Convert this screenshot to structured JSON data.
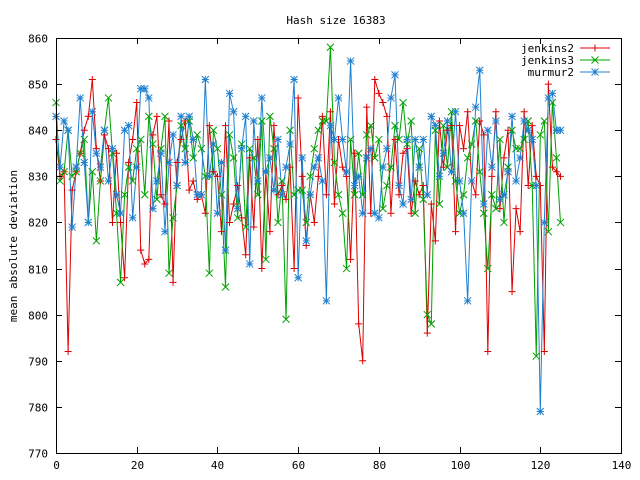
{
  "chart_data": {
    "type": "line",
    "title": "Hash size 16383",
    "xlabel": "",
    "ylabel": "mean absolute deviation",
    "xlim": [
      0,
      140
    ],
    "ylim": [
      770,
      860
    ],
    "x_ticks": [
      0,
      20,
      40,
      60,
      80,
      100,
      120,
      140
    ],
    "y_ticks": [
      770,
      780,
      790,
      800,
      810,
      820,
      830,
      840,
      850,
      860
    ],
    "grid": false,
    "legend_position": "top-right",
    "series": [
      {
        "name": "jenkins2",
        "color": "#dd0000",
        "marker": "plus",
        "values": [
          838,
          830,
          831,
          792,
          827,
          831,
          835,
          840,
          843,
          851,
          836,
          829,
          839,
          836,
          820,
          835,
          820,
          808,
          833,
          838,
          846,
          814,
          811,
          812,
          839,
          843,
          826,
          824,
          842,
          807,
          833,
          838,
          842,
          827,
          829,
          825,
          826,
          822,
          841,
          831,
          830,
          818,
          841,
          820,
          824,
          828,
          821,
          813,
          834,
          819,
          838,
          810,
          831,
          818,
          841,
          826,
          828,
          825,
          832,
          810,
          847,
          830,
          815,
          826,
          820,
          830,
          843,
          826,
          844,
          824,
          838,
          832,
          830,
          812,
          835,
          798,
          790,
          845,
          822,
          851,
          848,
          846,
          843,
          822,
          838,
          826,
          835,
          836,
          822,
          829,
          826,
          828,
          796,
          824,
          816,
          842,
          832,
          840,
          841,
          818,
          841,
          836,
          844,
          829,
          826,
          842,
          839,
          792,
          830,
          844,
          823,
          834,
          840,
          805,
          823,
          818,
          844,
          828,
          841,
          830,
          828,
          792,
          850,
          832,
          831,
          830
        ]
      },
      {
        "name": "jenkins3",
        "color": "#00a000",
        "marker": "x",
        "values": [
          846,
          829,
          831,
          840,
          830,
          831,
          835,
          838,
          820,
          831,
          816,
          829,
          840,
          847,
          835,
          822,
          807,
          826,
          832,
          829,
          836,
          838,
          826,
          843,
          837,
          825,
          836,
          843,
          809,
          821,
          828,
          841,
          836,
          842,
          834,
          839,
          836,
          830,
          809,
          840,
          836,
          826,
          806,
          839,
          834,
          821,
          837,
          819,
          836,
          834,
          826,
          842,
          812,
          843,
          836,
          820,
          829,
          799,
          840,
          826,
          827,
          827,
          820,
          830,
          836,
          840,
          842,
          842,
          858,
          833,
          826,
          822,
          810,
          838,
          826,
          835,
          826,
          839,
          841,
          834,
          838,
          823,
          828,
          832,
          841,
          838,
          846,
          837,
          842,
          822,
          836,
          825,
          800,
          798,
          840,
          824,
          841,
          832,
          844,
          829,
          822,
          826,
          834,
          837,
          842,
          831,
          822,
          810,
          826,
          823,
          838,
          820,
          832,
          840,
          836,
          836,
          838,
          842,
          828,
          791,
          839,
          842,
          818,
          846,
          834,
          820
        ]
      },
      {
        "name": "murmur2",
        "color": "#2080d0",
        "marker": "star",
        "values": [
          843,
          832,
          842,
          840,
          819,
          832,
          847,
          833,
          820,
          844,
          835,
          832,
          840,
          829,
          836,
          826,
          822,
          840,
          841,
          821,
          832,
          849,
          849,
          847,
          823,
          829,
          835,
          818,
          833,
          839,
          828,
          843,
          833,
          843,
          838,
          826,
          826,
          851,
          830,
          837,
          822,
          833,
          814,
          848,
          844,
          823,
          836,
          843,
          811,
          842,
          829,
          847,
          831,
          834,
          827,
          838,
          826,
          832,
          837,
          851,
          808,
          834,
          816,
          826,
          832,
          834,
          829,
          803,
          841,
          838,
          847,
          838,
          831,
          855,
          828,
          830,
          822,
          834,
          836,
          822,
          821,
          832,
          836,
          847,
          852,
          828,
          824,
          838,
          825,
          838,
          832,
          838,
          826,
          843,
          841,
          830,
          835,
          842,
          831,
          844,
          829,
          822,
          803,
          829,
          845,
          853,
          824,
          840,
          832,
          842,
          825,
          826,
          831,
          843,
          829,
          834,
          842,
          840,
          838,
          828,
          779,
          820,
          847,
          848,
          840,
          840
        ]
      }
    ]
  }
}
